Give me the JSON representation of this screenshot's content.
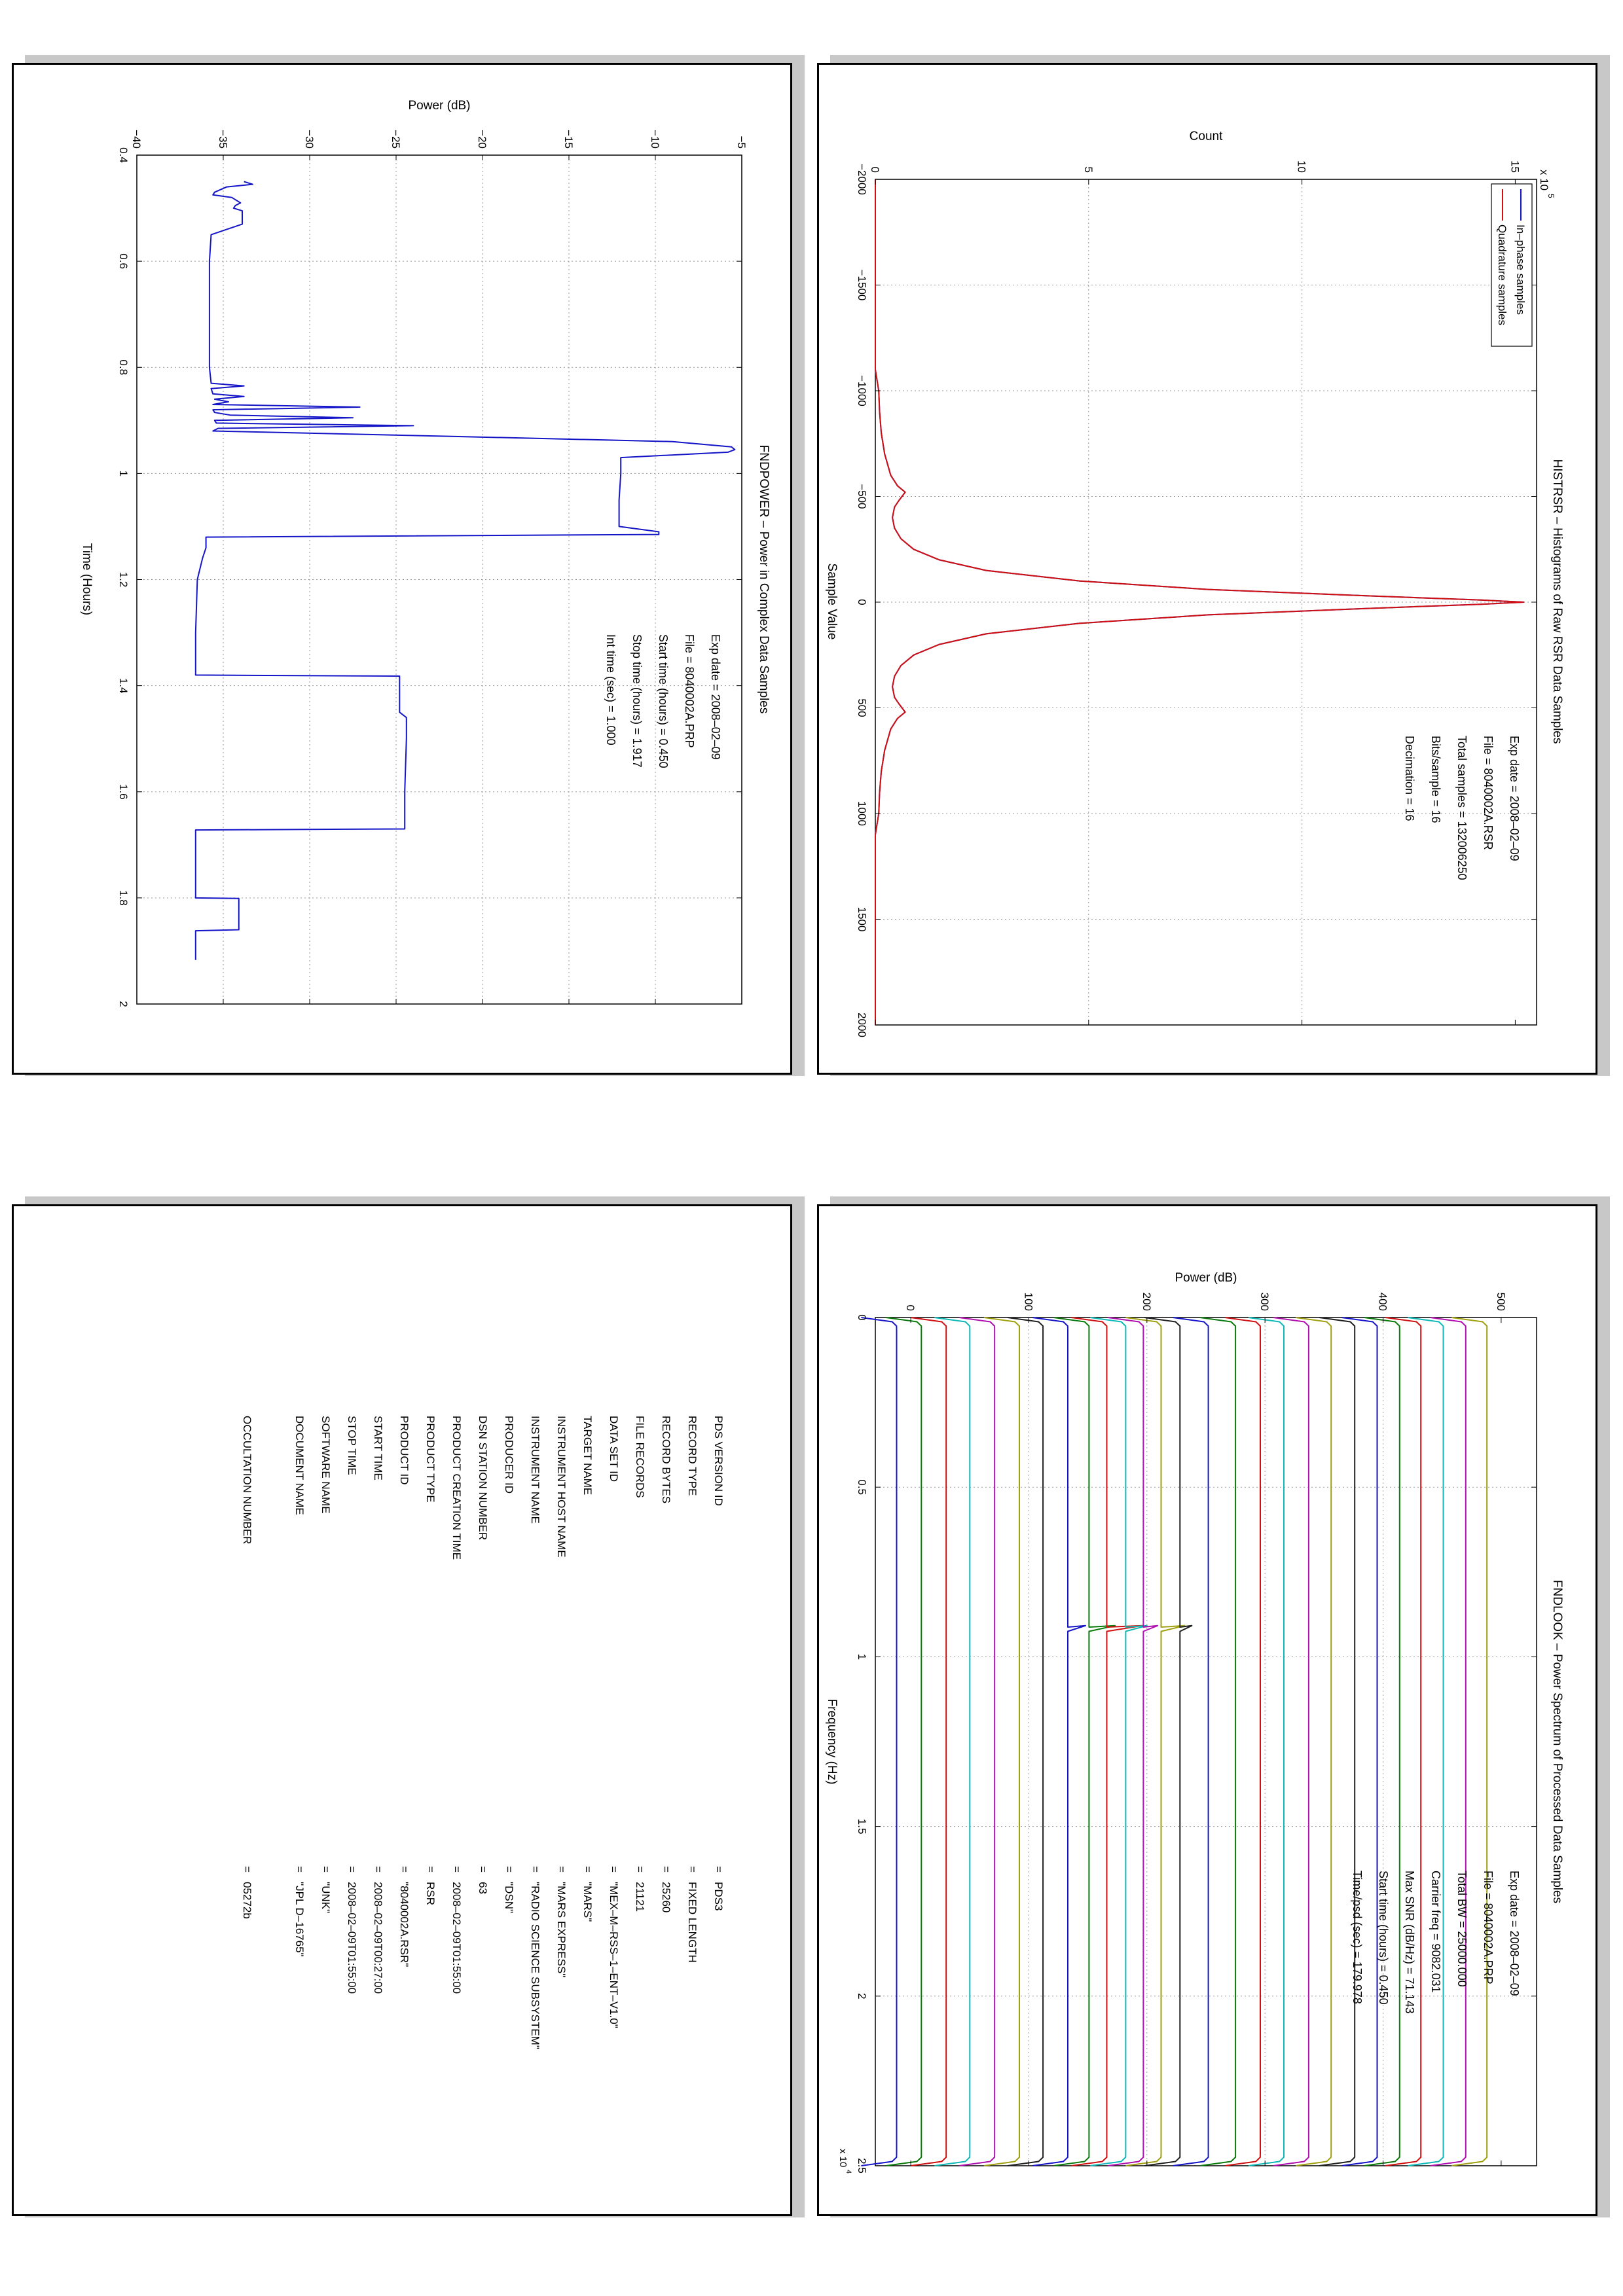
{
  "colors": {
    "blue": "#1515c8",
    "red": "#d01010",
    "grid": "#999999"
  },
  "histrsr": {
    "title": "HISTRSR – Histograms of Raw RSR Data Samples",
    "info": [
      "Exp date = 2008–02–09",
      "File = 8040002A.RSR",
      "Total samples = 132006250",
      "Bits/sample =     16",
      "Decimation  =     16"
    ],
    "legend": [
      "In–phase samples",
      "Quadrature samples"
    ],
    "exponent": "x 10",
    "exponent_power": "5"
  },
  "fndpower": {
    "title": "FNDPOWER – Power in Complex Data Samples",
    "info": [
      "Exp date = 2008–02–09",
      "File = 8040002A.PRP",
      "Start time (hours) = 0.450",
      "Stop time (hours) = 1.917",
      "Int time (sec) =     1.000"
    ]
  },
  "fndlook": {
    "title": "FNDLOOK – Power Spectrum of Processed Data Samples",
    "info": [
      "Exp date = 2008–02–09",
      "File = 8040002A.PRP",
      "Total BW =     25000.000",
      "Carrier freq =   9082.031",
      "Max SNR (dB/Hz) =     71.143",
      "Start time (hours) =    0.450",
      "Time/psd (sec) =    179.978"
    ],
    "exponent": "x 10",
    "exponent_power": "4"
  },
  "label": {
    "rows": [
      {
        "key": "PDS VERSION ID",
        "value": "=   PDS3"
      },
      {
        "key": "RECORD TYPE",
        "value": "=   FIXED LENGTH"
      },
      {
        "key": "RECORD BYTES",
        "value": "=   25260"
      },
      {
        "key": "FILE RECORDS",
        "value": "=   21121"
      },
      {
        "key": "DATA SET ID",
        "value": "=   \"MEX–M–RSS–1–ENT–V1.0\""
      },
      {
        "key": "TARGET NAME",
        "value": "=   \"MARS\""
      },
      {
        "key": "INSTRUMENT HOST NAME",
        "value": "=   \"MARS EXPRESS\""
      },
      {
        "key": "INSTRUMENT NAME",
        "value": "=   \"RADIO SCIENCE SUBSYSTEM\""
      },
      {
        "key": "PRODUCER ID",
        "value": "=   \"DSN\""
      },
      {
        "key": "DSN STATION NUMBER",
        "value": "=   63"
      },
      {
        "key": "PRODUCT CREATION TIME",
        "value": "=   2008–02–09T01:55:00"
      },
      {
        "key": "PRODUCT TYPE",
        "value": "=   RSR"
      },
      {
        "key": "PRODUCT ID",
        "value": "=   \"8040002A.RSR\""
      },
      {
        "key": "START TIME",
        "value": "=   2008–02–09T00:27:00"
      },
      {
        "key": "STOP TIME",
        "value": "=   2008–02–09T01:55:00"
      },
      {
        "key": "SOFTWARE NAME",
        "value": "=   \"UNK\""
      },
      {
        "key": "DOCUMENT NAME",
        "value": "=   \"JPL D–16765\""
      },
      {
        "key": "",
        "value": ""
      },
      {
        "key": "OCCULTATION NUMBER",
        "value": "=   05272b"
      }
    ]
  },
  "chart_data": [
    {
      "name": "HISTRSR",
      "type": "line",
      "title": "HISTRSR – Histograms of Raw RSR Data Samples",
      "xlabel": "Sample Value",
      "ylabel": "Count",
      "xlim": [
        -2000,
        2000
      ],
      "ylim": [
        0,
        1550000
      ],
      "xticks": [
        -2000,
        -1500,
        -1000,
        -500,
        0,
        500,
        1000,
        1500,
        2000
      ],
      "xtick_labels": [
        "−2000",
        "−1500",
        "−1000",
        "−500",
        "0",
        "500",
        "1000",
        "1500",
        "2000"
      ],
      "yticks": [
        0,
        500000,
        1000000,
        1500000
      ],
      "ytick_labels": [
        "0",
        "5",
        "10",
        "15"
      ],
      "grid": true,
      "legend_position": "top-left",
      "series": [
        {
          "name": "In–phase samples",
          "color": "#1515c8",
          "x": [
            -2000,
            -1100,
            -1000,
            -900,
            -800,
            -700,
            -600,
            -550,
            -520,
            -480,
            -450,
            -400,
            -350,
            -300,
            -250,
            -200,
            -150,
            -100,
            -60,
            -30,
            -10,
            0,
            10,
            30,
            60,
            100,
            150,
            200,
            250,
            300,
            350,
            400,
            450,
            480,
            520,
            550,
            600,
            700,
            800,
            900,
            1000,
            1100,
            2000
          ],
          "values": [
            0,
            0,
            8000,
            10000,
            14000,
            22000,
            36000,
            52000,
            70000,
            55000,
            45000,
            40000,
            45000,
            60000,
            90000,
            150000,
            260000,
            480000,
            780000,
            1150000,
            1420000,
            1520000,
            1420000,
            1150000,
            780000,
            480000,
            260000,
            150000,
            90000,
            60000,
            45000,
            40000,
            45000,
            55000,
            70000,
            52000,
            36000,
            22000,
            14000,
            10000,
            8000,
            0,
            0
          ]
        },
        {
          "name": "Quadrature samples",
          "color": "#d01010",
          "x": [
            -2000,
            -1100,
            -1000,
            -900,
            -800,
            -700,
            -600,
            -550,
            -520,
            -480,
            -450,
            -400,
            -350,
            -300,
            -250,
            -200,
            -150,
            -100,
            -60,
            -30,
            -10,
            0,
            10,
            30,
            60,
            100,
            150,
            200,
            250,
            300,
            350,
            400,
            450,
            480,
            520,
            550,
            600,
            700,
            800,
            900,
            1000,
            1100,
            2000
          ],
          "values": [
            0,
            0,
            8000,
            10000,
            14000,
            22000,
            36000,
            52000,
            70000,
            55000,
            45000,
            40000,
            45000,
            60000,
            90000,
            150000,
            260000,
            480000,
            780000,
            1150000,
            1420000,
            1520000,
            1420000,
            1150000,
            780000,
            480000,
            260000,
            150000,
            90000,
            60000,
            45000,
            40000,
            45000,
            55000,
            70000,
            52000,
            36000,
            22000,
            14000,
            10000,
            8000,
            0,
            0
          ]
        }
      ]
    },
    {
      "name": "FNDPOWER",
      "type": "line",
      "title": "FNDPOWER – Power in Complex Data Samples",
      "xlabel": "Time (Hours)",
      "ylabel": "Power (dB)",
      "xlim": [
        0.4,
        2
      ],
      "ylim": [
        -40,
        -5
      ],
      "xticks": [
        0.4,
        0.6,
        0.8,
        1,
        1.2,
        1.4,
        1.6,
        1.8,
        2
      ],
      "xtick_labels": [
        "0.4",
        "0.6",
        "0.8",
        "1",
        "1.2",
        "1.4",
        "1.6",
        "1.8",
        "2"
      ],
      "yticks": [
        -40,
        -35,
        -30,
        -25,
        -20,
        -15,
        -10,
        -5
      ],
      "ytick_labels": [
        "−40",
        "−35",
        "−30",
        "−25",
        "−20",
        "−15",
        "−10",
        "−5"
      ],
      "grid": true,
      "series": [
        {
          "color": "#1515c8",
          "x": [
            0.45,
            0.455,
            0.46,
            0.47,
            0.475,
            0.48,
            0.49,
            0.495,
            0.5,
            0.505,
            0.51,
            0.52,
            0.53,
            0.55,
            0.6,
            0.7,
            0.8,
            0.83,
            0.835,
            0.84,
            0.85,
            0.855,
            0.86,
            0.865,
            0.87,
            0.875,
            0.88,
            0.885,
            0.89,
            0.895,
            0.9,
            0.905,
            0.91,
            0.915,
            0.92,
            0.93,
            0.94,
            0.95,
            0.955,
            0.96,
            0.97,
            1.0,
            1.05,
            1.1,
            1.11,
            1.115,
            1.12,
            1.14,
            1.16,
            1.2,
            1.3,
            1.38,
            1.382,
            1.4,
            1.45,
            1.46,
            1.5,
            1.6,
            1.67,
            1.672,
            1.7,
            1.8,
            1.801,
            1.85,
            1.86,
            1.862,
            1.9,
            1.917
          ],
          "values": [
            -33.8,
            -33.3,
            -34.8,
            -35.5,
            -35.6,
            -34.5,
            -34.0,
            -34.3,
            -34.4,
            -33.9,
            -33.9,
            -33.9,
            -33.9,
            -35.7,
            -35.8,
            -35.8,
            -35.8,
            -35.7,
            -33.8,
            -35.7,
            -35.6,
            -33.8,
            -35.5,
            -34.7,
            -35.6,
            -27.1,
            -35.6,
            -35.5,
            -34.6,
            -27.5,
            -35.5,
            -35.4,
            -24.0,
            -35.3,
            -35.6,
            -22.0,
            -9.0,
            -5.6,
            -5.4,
            -5.8,
            -12.0,
            -12.0,
            -12.1,
            -12.1,
            -9.8,
            -9.8,
            -36.0,
            -36.0,
            -36.2,
            -36.5,
            -36.6,
            -36.6,
            -24.8,
            -24.8,
            -24.8,
            -24.4,
            -24.4,
            -24.5,
            -24.5,
            -36.6,
            -36.6,
            -36.6,
            -34.1,
            -34.1,
            -34.1,
            -36.6,
            -36.6,
            -36.6
          ]
        }
      ]
    },
    {
      "name": "FNDLOOK",
      "type": "line",
      "title": "FNDLOOK – Power Spectrum of Processed Data Samples",
      "xlabel": "Frequency (Hz)",
      "ylabel": "Power (dB)",
      "xlim": [
        0,
        25000
      ],
      "ylim": [
        -30,
        530
      ],
      "xticks": [
        0,
        5000,
        10000,
        15000,
        20000,
        25000
      ],
      "xtick_labels": [
        "0",
        "0.5",
        "1",
        "1.5",
        "2",
        "2.5"
      ],
      "yticks": [
        0,
        100,
        200,
        300,
        400,
        500
      ],
      "ytick_labels": [
        "0",
        "100",
        "200",
        "300",
        "400",
        "500"
      ],
      "grid": true,
      "carrier_freq": 9082,
      "series_colors": [
        "#1515c8",
        "#0a7a0a",
        "#d01010",
        "#10b8b8",
        "#b010b0",
        "#a0a010",
        "#202020"
      ],
      "series": [
        {
          "offset": -12,
          "peak": 0
        },
        {
          "offset": 9,
          "peak": 0
        },
        {
          "offset": 30,
          "peak": 0
        },
        {
          "offset": 50,
          "peak": 0
        },
        {
          "offset": 71,
          "peak": 0
        },
        {
          "offset": 92,
          "peak": 0
        },
        {
          "offset": 112,
          "peak": 0
        },
        {
          "offset": 133,
          "peak": 15
        },
        {
          "offset": 151,
          "peak": 22
        },
        {
          "offset": 166,
          "peak": 30
        },
        {
          "offset": 182,
          "peak": 18
        },
        {
          "offset": 197,
          "peak": 12
        },
        {
          "offset": 212,
          "peak": 20
        },
        {
          "offset": 228,
          "peak": 10
        },
        {
          "offset": 252,
          "peak": 0
        },
        {
          "offset": 275,
          "peak": 0
        },
        {
          "offset": 296,
          "peak": 0
        },
        {
          "offset": 316,
          "peak": 0
        },
        {
          "offset": 337,
          "peak": 0
        },
        {
          "offset": 356,
          "peak": 0
        },
        {
          "offset": 376,
          "peak": 0
        },
        {
          "offset": 395,
          "peak": 0
        },
        {
          "offset": 414,
          "peak": 0
        },
        {
          "offset": 432,
          "peak": 0
        },
        {
          "offset": 451,
          "peak": 0
        },
        {
          "offset": 470,
          "peak": 0
        },
        {
          "offset": 488,
          "peak": 0
        }
      ]
    }
  ]
}
